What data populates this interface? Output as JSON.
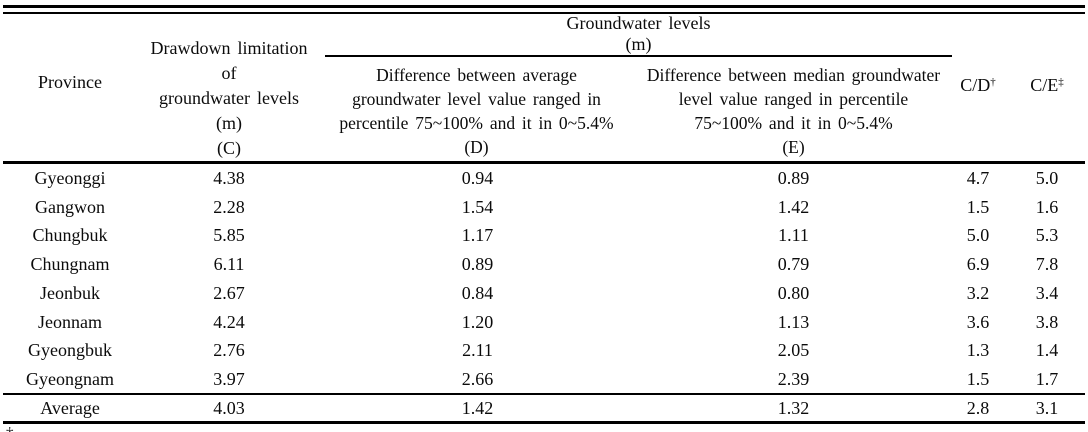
{
  "colors": {
    "background": "#ffffff",
    "text": "#0b0b0b",
    "rule": "#000000"
  },
  "table": {
    "header": {
      "province": "Province",
      "c_lines": [
        "Drawdown limitation of",
        "groundwater levels",
        "(m)",
        "(C)"
      ],
      "spanner_title": "Groundwater levels",
      "spanner_unit": "(m)",
      "d_lines": [
        "Difference between average",
        "groundwater level value ranged in",
        "percentile 75~100% and it in 0~5.4%",
        "(D)"
      ],
      "e_lines": [
        "Difference between median groundwater",
        "level value ranged in percentile",
        "75~100% and it in 0~5.4%",
        "(E)"
      ],
      "cd_label": "C/D",
      "cd_sup": "†",
      "ce_label": "C/E",
      "ce_sup": "‡"
    },
    "rows": [
      {
        "province": "Gyeonggi",
        "c": "4.38",
        "d": "0.94",
        "e": "0.89",
        "cd": "4.7",
        "ce": "5.0"
      },
      {
        "province": "Gangwon",
        "c": "2.28",
        "d": "1.54",
        "e": "1.42",
        "cd": "1.5",
        "ce": "1.6"
      },
      {
        "province": "Chungbuk",
        "c": "5.85",
        "d": "1.17",
        "e": "1.11",
        "cd": "5.0",
        "ce": "5.3"
      },
      {
        "province": "Chungnam",
        "c": "6.11",
        "d": "0.89",
        "e": "0.79",
        "cd": "6.9",
        "ce": "7.8"
      },
      {
        "province": "Jeonbuk",
        "c": "2.67",
        "d": "0.84",
        "e": "0.80",
        "cd": "3.2",
        "ce": "3.4"
      },
      {
        "province": "Jeonnam",
        "c": "4.24",
        "d": "1.20",
        "e": "1.13",
        "cd": "3.6",
        "ce": "3.8"
      },
      {
        "province": "Gyeongbuk",
        "c": "2.76",
        "d": "2.11",
        "e": "2.05",
        "cd": "1.3",
        "ce": "1.4"
      },
      {
        "province": "Gyeongnam",
        "c": "3.97",
        "d": "2.66",
        "e": "2.39",
        "cd": "1.5",
        "ce": "1.7"
      }
    ],
    "average": {
      "province": "Average",
      "c": "4.03",
      "d": "1.42",
      "e": "1.32",
      "cd": "2.8",
      "ce": "3.1"
    }
  },
  "footnote": {
    "partial_mark": "†"
  }
}
